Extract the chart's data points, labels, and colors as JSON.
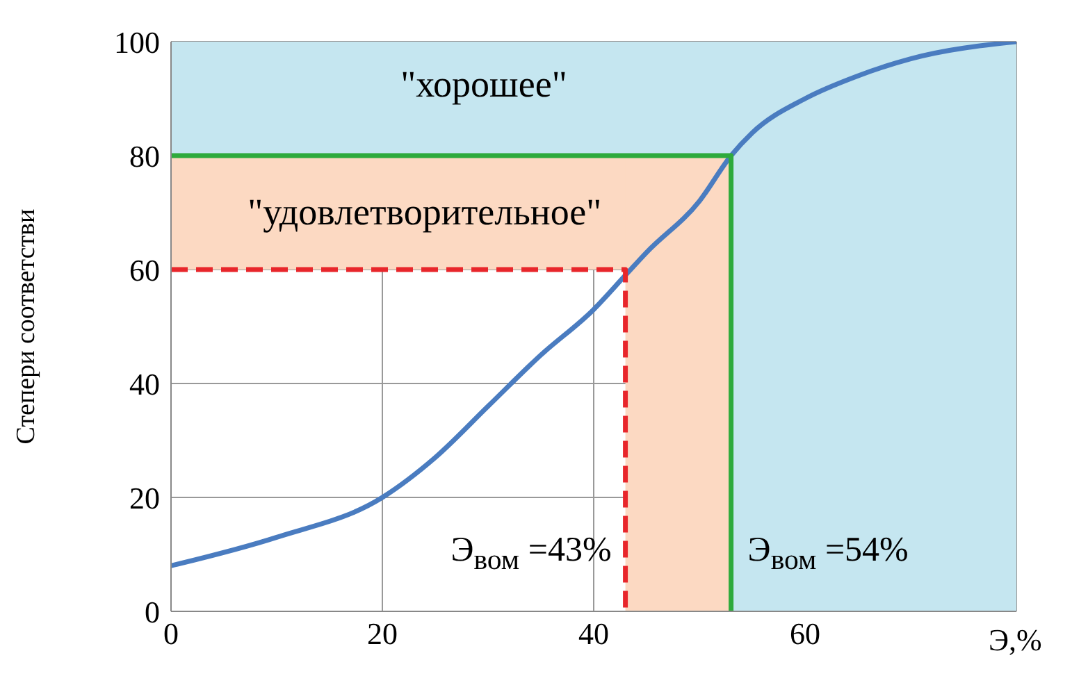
{
  "chart_data": {
    "type": "line",
    "xlabel": "Э,%",
    "ylabel": "Степери соответстви",
    "xlim": [
      0,
      80
    ],
    "xticks": [
      0,
      20,
      40,
      60
    ],
    "ylim": [
      0,
      100
    ],
    "yticks": [
      0,
      20,
      40,
      60,
      80,
      100
    ],
    "grid": true,
    "series": [
      {
        "color": "#4a7cc0",
        "x": [
          0,
          10,
          20,
          25,
          30,
          35,
          40,
          43,
          45,
          50,
          53,
          55,
          60,
          65,
          70,
          80
        ],
        "values": [
          8,
          13,
          20,
          27,
          36,
          45,
          53,
          59,
          63,
          72,
          80,
          84,
          90,
          94,
          97,
          100
        ]
      },
      {
        "color": "#e8262b",
        "line_style": "dashed",
        "x": [
          0,
          43,
          43
        ],
        "values": [
          60,
          60,
          0
        ]
      },
      {
        "color": "#2eaa3c",
        "x": [
          0,
          53,
          53
        ],
        "values": [
          80,
          80,
          0
        ]
      }
    ],
    "bands": [
      {
        "axis": "y",
        "from": 60,
        "to": 80,
        "color": "#fcd9c2"
      },
      {
        "axis": "x",
        "from": 43,
        "to": 53,
        "color": "#fcd9c2"
      },
      {
        "axis": "y",
        "from": 80,
        "to": 100,
        "color": "#c5e6f0"
      },
      {
        "axis": "x",
        "from": 53,
        "to": 80,
        "color": "#c5e6f0"
      }
    ],
    "annotations": [
      "\"хорошее\"",
      "\"удовлетворительное\"",
      {
        "text": "Э$_{вом}$ =43%",
        "x": 43,
        "y": 10
      },
      {
        "text": "Э$_{вом}$ =54%",
        "x": 53,
        "y": 10
      }
    ]
  }
}
